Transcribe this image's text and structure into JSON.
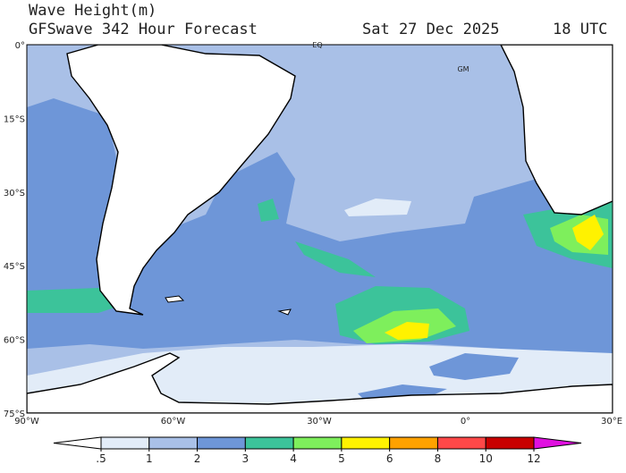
{
  "header": {
    "title": "Wave Height(m)",
    "subtitle": "GFSwave 342 Hour Forecast",
    "date": "Sat 27 Dec 2025",
    "time": "18 UTC"
  },
  "map": {
    "lat_labels": [
      "0°",
      "15°S",
      "30°S",
      "45°S",
      "60°S",
      "75°S"
    ],
    "lon_labels": [
      "90°W",
      "60°W",
      "30°W",
      "0°",
      "30°E"
    ],
    "annotations": {
      "equator": "EQ",
      "meridian": "GM"
    }
  },
  "colorbar": {
    "ticks": [
      {
        "value": 0.5,
        "label": ".5"
      },
      1,
      2,
      3,
      4,
      5,
      6,
      8,
      10,
      12
    ],
    "colors": [
      "#ffffff",
      "#e2ecf8",
      "#a9c0e7",
      "#6e96d8",
      "#3cc39a",
      "#7eef5c",
      "#fff200",
      "#ffa200",
      "#ff4848",
      "#c80000",
      "#e010e0"
    ]
  }
}
